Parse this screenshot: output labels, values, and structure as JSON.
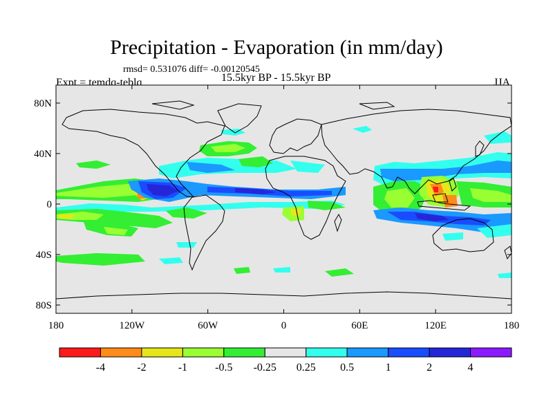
{
  "title": "Precipitation - Evaporation (in mm/day)",
  "stats_line": "rmsd= 0.531076 diff= -0.00120545",
  "period": "15.5kyr BP - 15.5kyr BP",
  "experiment": "Expt = temdq-teblq",
  "season": "JJA",
  "y_axis": {
    "tick_labels": [
      "80N",
      "40N",
      "0",
      "40S",
      "80S"
    ]
  },
  "x_axis": {
    "tick_labels": [
      "180",
      "120W",
      "60W",
      "0",
      "60E",
      "120E",
      "180"
    ]
  },
  "colorbar": {
    "colors": [
      "#ff1a1a",
      "#ff8c1a",
      "#e6e61a",
      "#99ff33",
      "#33ee33",
      "#e6e6e6",
      "#33ffee",
      "#1a99ff",
      "#1a4cff",
      "#2626d9",
      "#8c1aff"
    ],
    "labels": [
      "-4",
      "-2",
      "-1",
      "-0.5",
      "-0.25",
      "0.25",
      "0.5",
      "1",
      "2",
      "4"
    ]
  }
}
